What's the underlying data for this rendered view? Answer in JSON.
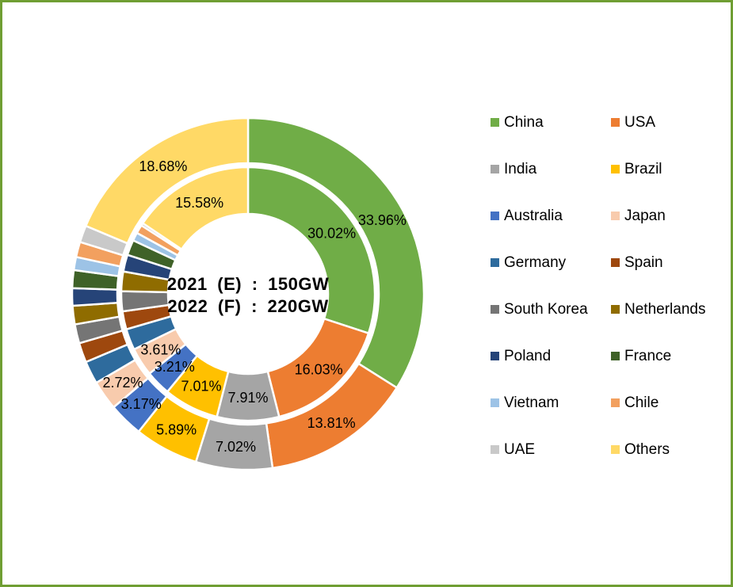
{
  "page": {
    "background_color": "#FFFFFF",
    "border_color": "#6F9E33"
  },
  "center_annotation": {
    "line1": "2021 (E) : 150GW",
    "line2": "2022 (F) : 220GW"
  },
  "chart_data": {
    "type": "donut",
    "description": "Double-ring donut of global solar market share by country; inner ring 2021 (E) total 150GW, outer ring 2022 (F) total 220GW",
    "categories": [
      "China",
      "USA",
      "India",
      "Brazil",
      "Australia",
      "Japan",
      "Germany",
      "Spain",
      "South Korea",
      "Netherlands",
      "Poland",
      "France",
      "Vietnam",
      "Chile",
      "UAE",
      "Others"
    ],
    "colors": [
      "#70AD47",
      "#ED7D31",
      "#A5A5A5",
      "#FFC000",
      "#4472C4",
      "#F8CBAD",
      "#2E6B9D",
      "#9E480E",
      "#757575",
      "#8F6C00",
      "#264478",
      "#3F6228",
      "#9DC3E6",
      "#F2A05F",
      "#C9C9C9",
      "#FFD966"
    ],
    "series": [
      {
        "name": "2021 (E)",
        "ring": "inner",
        "total": "150GW",
        "values": [
          30.02,
          16.03,
          7.91,
          7.01,
          3.21,
          3.61,
          2.7,
          2.3,
          2.55,
          2.5,
          2.15,
          1.95,
          1.05,
          1.1,
          0.33,
          15.58
        ]
      },
      {
        "name": "2022 (F)",
        "ring": "outer",
        "total": "220GW",
        "values": [
          33.96,
          13.81,
          7.02,
          5.89,
          3.17,
          2.72,
          2.1,
          1.8,
          1.75,
          1.7,
          1.6,
          1.65,
          1.2,
          1.4,
          1.55,
          18.68
        ]
      }
    ],
    "labeled_categories": [
      "China",
      "USA",
      "India",
      "Brazil",
      "Australia",
      "Japan",
      "Others"
    ],
    "label_suffix": "%",
    "legend_position": "right",
    "legend_columns": 2,
    "start_angle_deg": 0,
    "clockwise": true
  }
}
